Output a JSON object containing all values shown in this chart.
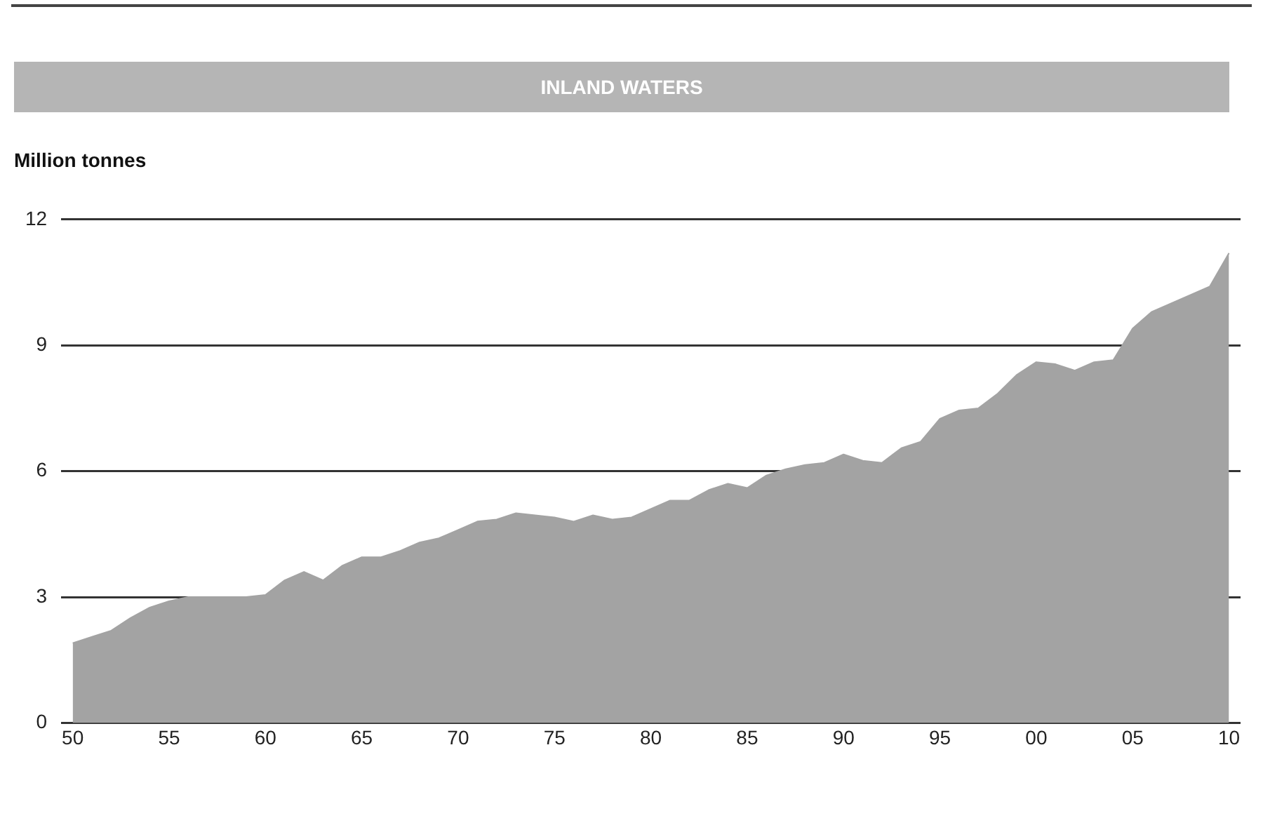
{
  "chart_data": {
    "type": "area",
    "title": "INLAND WATERS",
    "ylabel": "Million tonnes",
    "x": [
      1950,
      1951,
      1952,
      1953,
      1954,
      1955,
      1956,
      1957,
      1958,
      1959,
      1960,
      1961,
      1962,
      1963,
      1964,
      1965,
      1966,
      1967,
      1968,
      1969,
      1970,
      1971,
      1972,
      1973,
      1974,
      1975,
      1976,
      1977,
      1978,
      1979,
      1980,
      1981,
      1982,
      1983,
      1984,
      1985,
      1986,
      1987,
      1988,
      1989,
      1990,
      1991,
      1992,
      1993,
      1994,
      1995,
      1996,
      1997,
      1998,
      1999,
      2000,
      2001,
      2002,
      2003,
      2004,
      2005,
      2006,
      2007,
      2008,
      2009,
      2010
    ],
    "series": [
      {
        "color": "#a3a3a3",
        "values": [
          1.9,
          2.05,
          2.2,
          2.5,
          2.75,
          2.9,
          3.0,
          3.0,
          3.0,
          3.0,
          3.05,
          3.4,
          3.6,
          3.4,
          3.75,
          3.95,
          3.95,
          4.1,
          4.3,
          4.4,
          4.6,
          4.8,
          4.85,
          5.0,
          4.95,
          4.9,
          4.8,
          4.95,
          4.85,
          4.9,
          5.1,
          5.3,
          5.3,
          5.55,
          5.7,
          5.6,
          5.9,
          6.05,
          6.15,
          6.2,
          6.4,
          6.25,
          6.2,
          6.55,
          6.7,
          7.25,
          7.45,
          7.5,
          7.85,
          8.3,
          8.6,
          8.55,
          8.4,
          8.6,
          8.65,
          9.4,
          9.8,
          10.0,
          10.2,
          10.4,
          11.2
        ]
      }
    ],
    "xlim": [
      1949.4,
      2010.6
    ],
    "xticks": [
      {
        "value": 1950,
        "label": "50"
      },
      {
        "value": 1955,
        "label": "55"
      },
      {
        "value": 1960,
        "label": "60"
      },
      {
        "value": 1965,
        "label": "65"
      },
      {
        "value": 1970,
        "label": "70"
      },
      {
        "value": 1975,
        "label": "75"
      },
      {
        "value": 1980,
        "label": "80"
      },
      {
        "value": 1985,
        "label": "85"
      },
      {
        "value": 1990,
        "label": "90"
      },
      {
        "value": 1995,
        "label": "95"
      },
      {
        "value": 2000,
        "label": "00"
      },
      {
        "value": 2005,
        "label": "05"
      },
      {
        "value": 2010,
        "label": "10"
      }
    ],
    "ylim": [
      0,
      12
    ],
    "yticks": [
      0,
      3,
      6,
      9,
      12
    ],
    "grid": "y",
    "legend": false,
    "marker": "none"
  }
}
